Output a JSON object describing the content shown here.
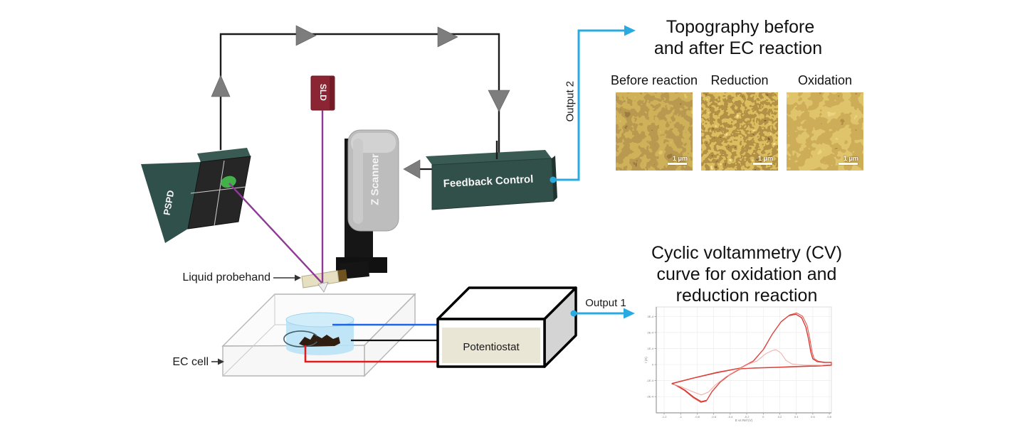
{
  "schematic": {
    "pspd_label": "PSPD",
    "sld_label": "SLD",
    "z_scanner_label": "Z Scanner",
    "feedback_label": "Feedback Control",
    "potentiostat_label": "Potentiostat",
    "liquid_probehand_label": "Liquid probehand",
    "ec_cell_label": "EC cell",
    "output1_label": "Output 1",
    "output2_label": "Output 2",
    "colors": {
      "accent_cyan": "#29abe2",
      "laser_purple": "#8e3a96",
      "teal_box": "#31504a",
      "sld_red": "#8b2433",
      "wire_blue": "#1a66e8",
      "wire_black": "#111111",
      "wire_red": "#e51b1b",
      "arrow_gray": "#7d7d7d"
    }
  },
  "topography": {
    "title_line1": "Topography before",
    "title_line2": "and after EC reaction",
    "images": [
      {
        "label": "Before reaction",
        "scale_bar": "1 μm"
      },
      {
        "label": "Reduction",
        "scale_bar": "1 μm"
      },
      {
        "label": "Oxidation",
        "scale_bar": "1 μm"
      }
    ]
  },
  "cv": {
    "title_line1": "Cyclic voltammetry (CV)",
    "title_line2": "curve for oxidation and",
    "title_line3": "reduction reaction"
  },
  "chart_data": {
    "type": "line",
    "title": "Cyclic voltammetry (CV) curve for oxidation and reduction reaction",
    "xlabel": "E vs Ref (V)",
    "ylabel": "I (A)",
    "xlim": [
      -1.295,
      0.825
    ],
    "ylim": [
      -0.000301,
      0.000359
    ],
    "grid": true,
    "legend": "none",
    "x_ticks": [
      {
        "value": -1.2,
        "label": "-1.2"
      },
      {
        "value": -1.0,
        "label": "-1"
      },
      {
        "value": -0.8,
        "label": "-0.8"
      },
      {
        "value": -0.6,
        "label": "-0.6"
      },
      {
        "value": -0.4,
        "label": "-0.4"
      },
      {
        "value": -0.2,
        "label": "-0.2"
      },
      {
        "value": 0.0,
        "label": "0"
      },
      {
        "value": 0.2,
        "label": "0.2"
      },
      {
        "value": 0.4,
        "label": "0.4"
      },
      {
        "value": 0.6,
        "label": "0.6"
      },
      {
        "value": 0.8,
        "label": "0.8"
      }
    ],
    "y_ticks": [
      {
        "value": 0.0003,
        "label": "3E-4"
      },
      {
        "value": 0.0002,
        "label": "2E-4"
      },
      {
        "value": 0.0001,
        "label": "1E-4"
      },
      {
        "value": 0,
        "label": "0"
      },
      {
        "value": -0.0001,
        "label": "-1E-4"
      },
      {
        "value": -0.0002,
        "label": "-2E-4"
      }
    ],
    "series": [
      {
        "name": "cv-cycle-1",
        "color": "#d63029",
        "width": 1.3,
        "points": [
          [
            -1.105,
            -0.000119
          ],
          [
            -0.84,
            -8.4e-05
          ],
          [
            -0.58,
            -5.3e-05
          ],
          [
            -0.276,
            -2.2e-05
          ],
          [
            -0.12,
            2.2e-05
          ],
          [
            0.0,
            9.3e-05
          ],
          [
            0.11,
            0.00019
          ],
          [
            0.215,
            0.000266
          ],
          [
            0.31,
            0.000305
          ],
          [
            0.395,
            0.000314
          ],
          [
            0.465,
            0.000292
          ],
          [
            0.515,
            0.000235
          ],
          [
            0.55,
            0.000155
          ],
          [
            0.575,
            7.9e-05
          ],
          [
            0.6,
            3.5e-05
          ],
          [
            0.655,
            1.8e-05
          ],
          [
            0.74,
            1.3e-05
          ],
          [
            0.825,
            1.3e-05
          ],
          [
            0.825,
            -4e-06
          ],
          [
            0.67,
            -9e-06
          ],
          [
            0.41,
            -1.3e-05
          ],
          [
            0.155,
            -1.8e-05
          ],
          [
            -0.105,
            -2.2e-05
          ],
          [
            -0.276,
            -2.6e-05
          ],
          [
            -0.405,
            -6.2e-05
          ],
          [
            -0.517,
            -0.000106
          ],
          [
            -0.62,
            -0.000168
          ],
          [
            -0.683,
            -0.000222
          ],
          [
            -0.75,
            -0.000231
          ],
          [
            -0.84,
            -0.000204
          ],
          [
            -0.95,
            -0.000159
          ],
          [
            -1.04,
            -0.000132
          ],
          [
            -1.105,
            -0.000119
          ]
        ]
      },
      {
        "name": "cv-cycle-2",
        "color": "#de4a42",
        "width": 1.0,
        "points": [
          [
            -1.1,
            -0.000116
          ],
          [
            -0.84,
            -8.2e-05
          ],
          [
            -0.58,
            -5e-05
          ],
          [
            -0.27,
            -2e-05
          ],
          [
            -0.11,
            2.6e-05
          ],
          [
            0.01,
            9.9e-05
          ],
          [
            0.12,
            0.000198
          ],
          [
            0.225,
            0.000272
          ],
          [
            0.32,
            0.00031
          ],
          [
            0.405,
            0.000322
          ],
          [
            0.475,
            0.000302
          ],
          [
            0.53,
            0.000245
          ],
          [
            0.565,
            0.00016
          ],
          [
            0.59,
            8.2e-05
          ],
          [
            0.615,
            3.8e-05
          ],
          [
            0.67,
            2e-05
          ],
          [
            0.75,
            1.5e-05
          ],
          [
            0.825,
            1.5e-05
          ],
          [
            0.825,
            -2e-06
          ],
          [
            0.67,
            -7e-06
          ],
          [
            0.41,
            -1.1e-05
          ],
          [
            0.15,
            -1.6e-05
          ],
          [
            -0.11,
            -2e-05
          ],
          [
            -0.28,
            -2.8e-05
          ],
          [
            -0.41,
            -6.6e-05
          ],
          [
            -0.52,
            -0.00011
          ],
          [
            -0.625,
            -0.000173
          ],
          [
            -0.69,
            -0.000228
          ],
          [
            -0.755,
            -0.000236
          ],
          [
            -0.845,
            -0.000208
          ],
          [
            -0.955,
            -0.000162
          ],
          [
            -1.045,
            -0.000134
          ],
          [
            -1.1,
            -0.000116
          ]
        ]
      },
      {
        "name": "cv-cycle-first-small",
        "color": "#f2aaa5",
        "width": 1.0,
        "points": [
          [
            -1.08,
            -0.000123
          ],
          [
            -0.98,
            -0.000141
          ],
          [
            -0.86,
            -0.000168
          ],
          [
            -0.75,
            -0.00019
          ],
          [
            -0.665,
            -0.000172
          ],
          [
            -0.58,
            -0.000128
          ],
          [
            -0.45,
            -7.5e-05
          ],
          [
            -0.32,
            -3.5e-05
          ],
          [
            -0.276,
            -2.4e-05
          ],
          [
            -0.17,
            4e-06
          ],
          [
            -0.077,
            2.2e-05
          ],
          [
            0.026,
            6.6e-05
          ],
          [
            0.112,
            8.8e-05
          ],
          [
            0.155,
            9.3e-05
          ],
          [
            0.215,
            7.1e-05
          ],
          [
            0.275,
            2.6e-05
          ],
          [
            0.345,
            4e-06
          ],
          [
            0.5,
            -4e-06
          ],
          [
            0.715,
            -4e-06
          ]
        ]
      }
    ]
  }
}
